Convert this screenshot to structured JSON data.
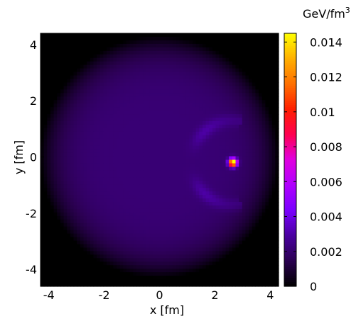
{
  "chart_data": {
    "type": "heatmap",
    "title": "",
    "xlabel": "x [fm]",
    "ylabel": "y [fm]",
    "xlim": [
      -4.3,
      4.3
    ],
    "ylim": [
      -4.6,
      4.4
    ],
    "xticks": [
      -4,
      -2,
      0,
      2,
      4
    ],
    "yticks": [
      -4,
      -2,
      0,
      2,
      4
    ],
    "xtick_labels": [
      "-4",
      "-2",
      "0",
      "2",
      "4"
    ],
    "ytick_labels": [
      "-4",
      "-2",
      "0",
      "2",
      "4"
    ],
    "colorbar": {
      "label_main": "GeV/fm",
      "label_sup": "3",
      "range": [
        0,
        0.0145
      ],
      "ticks": [
        0,
        0.002,
        0.004,
        0.006,
        0.008,
        0.01,
        0.012,
        0.014
      ],
      "tick_labels": [
        "0",
        "0.002",
        "0.004",
        "0.006",
        "0.008",
        "0.01",
        "0.012",
        "0.014"
      ],
      "colormap": [
        "#000000",
        "#2a0050",
        "#4a00a0",
        "#7a00ff",
        "#b000ff",
        "#e000e0",
        "#ff0050",
        "#ff2000",
        "#ff7000",
        "#ffb000",
        "#ffff00"
      ]
    },
    "field": {
      "description_values": {
        "background_level": 0.0021,
        "disk_radius_fm": 4.3,
        "hotspot_center": [
          2.65,
          -0.2
        ],
        "hotspot_peak": 0.0145,
        "wake_shape": "crescent"
      }
    }
  }
}
